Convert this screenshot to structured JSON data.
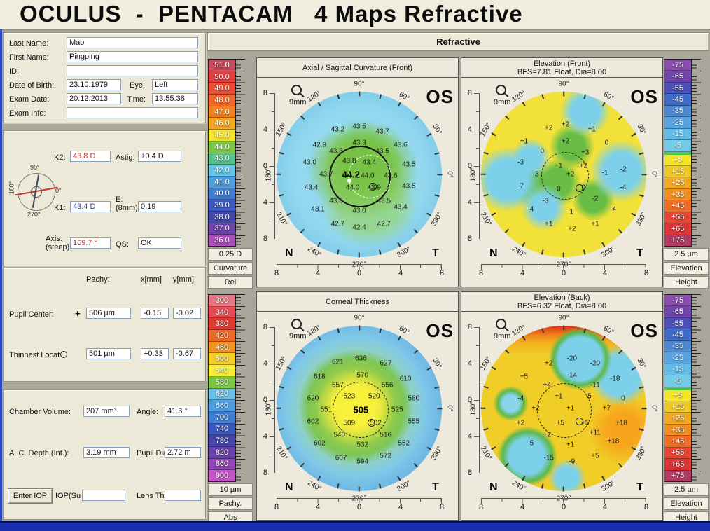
{
  "header": {
    "title": "OCULUS  -  PENTACAM   4 Maps Refractive"
  },
  "tab": {
    "refractive": "Refractive"
  },
  "patient": {
    "last_name_label": "Last Name:",
    "last_name": "Mao",
    "first_name_label": "First Name:",
    "first_name": "Pingping",
    "id_label": "ID:",
    "id": "",
    "dob_label": "Date of Birth:",
    "dob": "23.10.1979",
    "eye_label": "Eye:",
    "eye": "Left",
    "exam_date_label": "Exam Date:",
    "exam_date": "20.12.2013",
    "time_label": "Time:",
    "time": "13:55:38",
    "exam_info_label": "Exam Info:",
    "exam_info": ""
  },
  "kpanel": {
    "k2_label": "K2:",
    "k2": "43.8 D",
    "astig_label": "Astig:",
    "astig": "+0.4 D",
    "k1_label": "K1:",
    "k1": "43.4 D",
    "e_label_1": "E:",
    "e_label_2": "(8mm)",
    "e": "0.19",
    "axis_label_1": "Axis:",
    "axis_label_2": "(steep)",
    "axis": "169.7 °",
    "qs_label": "QS:",
    "qs": "OK",
    "dial": {
      "top": "90°",
      "left": "180°",
      "right": "0°",
      "bottom": "270°"
    }
  },
  "pachypanel": {
    "header_pachy": "Pachy:",
    "header_x": "x[mm]",
    "header_y": "y[mm]",
    "pupil_label": "Pupil Center:",
    "pupil_marker": "+",
    "pupil_pachy": "506 µm",
    "pupil_x": "-0.15",
    "pupil_y": "-0.02",
    "thinnest_label": "Thinnest Locat",
    "thinnest_pachy": "501 µm",
    "thinnest_x": "+0.33",
    "thinnest_y": "-0.67"
  },
  "bottompanel": {
    "chamber_label": "Chamber Volume:",
    "chamber": "207 mm³",
    "angle_label": "Angle:",
    "angle": "41.3 °",
    "acd_label": "A. C. Depth (Int.):",
    "acd": "3.19 mm",
    "pupil_dia_label": "Pupil Dia",
    "pupil_dia": "2.72 m",
    "enter_iop": "Enter IOP",
    "iop_label": "IOP(Su",
    "iop": "",
    "lens_label": "Lens Th.",
    "lens": ""
  },
  "scales": {
    "curvature": {
      "values": [
        "51.0",
        "50.0",
        "49.0",
        "48.0",
        "47.0",
        "46.0",
        "45.0",
        "44.0",
        "43.0",
        "42.0",
        "41.0",
        "40.0",
        "39.0",
        "38.0",
        "37.0",
        "36.0"
      ],
      "colors": [
        "#c74a5e",
        "#e23d3f",
        "#ed4a33",
        "#f1662a",
        "#f28323",
        "#f3a81f",
        "#f3e52b",
        "#7cc746",
        "#53c48e",
        "#67c5e7",
        "#4e9fe0",
        "#3f7cd5",
        "#3a5ac2",
        "#4446ab",
        "#7043ad",
        "#a94fb8"
      ],
      "step": "0.25 D",
      "quantity": "Curvature",
      "mode": "Rel"
    },
    "pachy": {
      "values": [
        "300",
        "340",
        "380",
        "420",
        "460",
        "500",
        "540",
        "580",
        "620",
        "660",
        "700",
        "740",
        "780",
        "820",
        "860",
        "900"
      ],
      "colors": [
        "#e57783",
        "#e84b55",
        "#df3a30",
        "#ef6a28",
        "#f29422",
        "#f4ce24",
        "#f5ee33",
        "#7cc843",
        "#69c0e8",
        "#4e9ede",
        "#3f7dd6",
        "#3a58c0",
        "#4345a8",
        "#6a42aa",
        "#9447b4",
        "#c355c4"
      ],
      "step": "10 µm",
      "quantity": "Pachy.",
      "mode": "Abs"
    },
    "elevation": {
      "values": [
        "-75",
        "-65",
        "-55",
        "-45",
        "-35",
        "-25",
        "-15",
        "-5",
        "+5",
        "+15",
        "+25",
        "+35",
        "+45",
        "+55",
        "+65",
        "+75"
      ],
      "colors": [
        "#8a4cae",
        "#6f46ac",
        "#4c50b8",
        "#3f6cc8",
        "#4a88d4",
        "#58a4e2",
        "#64bce8",
        "#74cce8",
        "#f4e42a",
        "#f2c922",
        "#f2ab20",
        "#f18f22",
        "#ef6d26",
        "#e84436",
        "#de3338",
        "#b13a62"
      ],
      "zero_after": 7,
      "zero_color": "#4fc44c",
      "step": "2.5 µm",
      "quantity": "Elevation",
      "mode": "Height"
    }
  },
  "maps": {
    "common": {
      "os": "OS",
      "zoom": "9mm",
      "n": "N",
      "t": "T",
      "axis_ticks": [
        "8",
        "4",
        "0",
        "4",
        "8"
      ],
      "angle_labels": [
        {
          "label": "90°",
          "deg": 90
        },
        {
          "label": "60°",
          "deg": 60
        },
        {
          "label": "30°",
          "deg": 30
        },
        {
          "label": "0°",
          "deg": 0
        },
        {
          "label": "330°",
          "deg": 330
        },
        {
          "label": "300°",
          "deg": 300
        },
        {
          "label": "270°",
          "deg": 270
        },
        {
          "label": "240°",
          "deg": 240
        },
        {
          "label": "210°",
          "deg": 210
        },
        {
          "label": "180°",
          "deg": 180
        },
        {
          "label": "150°",
          "deg": 150
        },
        {
          "label": "120°",
          "deg": 120
        }
      ]
    },
    "axial": {
      "title": "Axial / Sagittal Curvature (Front)",
      "subtitle": "",
      "values": [
        {
          "v": "43.2",
          "x": 37,
          "y": 23
        },
        {
          "v": "43.5",
          "x": 50,
          "y": 21
        },
        {
          "v": "43.7",
          "x": 64,
          "y": 24
        },
        {
          "v": "42.9",
          "x": 26,
          "y": 32
        },
        {
          "v": "43.3",
          "x": 50,
          "y": 31
        },
        {
          "v": "43.6",
          "x": 75,
          "y": 32
        },
        {
          "v": "43.3",
          "x": 36,
          "y": 36
        },
        {
          "v": "43.5",
          "x": 64,
          "y": 36
        },
        {
          "v": "43.0",
          "x": 20,
          "y": 43
        },
        {
          "v": "43.8",
          "x": 44,
          "y": 42
        },
        {
          "v": "43.4",
          "x": 56,
          "y": 43
        },
        {
          "v": "43.5",
          "x": 80,
          "y": 44
        },
        {
          "v": "43.7",
          "x": 30,
          "y": 50
        },
        {
          "v": "44.2",
          "x": 45,
          "y": 50,
          "b": 1
        },
        {
          "v": "44.0",
          "x": 55,
          "y": 51
        },
        {
          "v": "43.6",
          "x": 69,
          "y": 51
        },
        {
          "v": "43.4",
          "x": 21,
          "y": 58
        },
        {
          "v": "44.0",
          "x": 46,
          "y": 58
        },
        {
          "v": "43.9",
          "x": 59,
          "y": 58
        },
        {
          "v": "43.5",
          "x": 80,
          "y": 57
        },
        {
          "v": "43.3",
          "x": 36,
          "y": 66
        },
        {
          "v": "43.5",
          "x": 65,
          "y": 66
        },
        {
          "v": "43.1",
          "x": 25,
          "y": 71
        },
        {
          "v": "43.0",
          "x": 50,
          "y": 72
        },
        {
          "v": "43.4",
          "x": 75,
          "y": 70
        },
        {
          "v": "42.7",
          "x": 37,
          "y": 80
        },
        {
          "v": "42.4",
          "x": 50,
          "y": 82
        },
        {
          "v": "42.7",
          "x": 65,
          "y": 80
        }
      ]
    },
    "elev_front": {
      "title": "Elevation (Front)",
      "subtitle": "BFS=7.81 Float, Dia=8.00",
      "values": [
        {
          "v": "+2",
          "x": 41,
          "y": 22
        },
        {
          "v": "+2",
          "x": 51,
          "y": 20
        },
        {
          "v": "+1",
          "x": 67,
          "y": 23
        },
        {
          "v": "+1",
          "x": 26,
          "y": 30
        },
        {
          "v": "+2",
          "x": 51,
          "y": 30
        },
        {
          "v": "0",
          "x": 76,
          "y": 31
        },
        {
          "v": "0",
          "x": 37,
          "y": 36
        },
        {
          "v": "+3",
          "x": 63,
          "y": 37
        },
        {
          "v": "-3",
          "x": 24,
          "y": 43
        },
        {
          "v": "+1",
          "x": 47,
          "y": 45
        },
        {
          "v": "+2",
          "x": 62,
          "y": 45
        },
        {
          "v": "-2",
          "x": 86,
          "y": 47
        },
        {
          "v": "-3",
          "x": 33,
          "y": 50
        },
        {
          "v": "+2",
          "x": 54,
          "y": 50
        },
        {
          "v": "-1",
          "x": 75,
          "y": 49
        },
        {
          "v": "-7",
          "x": 24,
          "y": 57
        },
        {
          "v": "0",
          "x": 47,
          "y": 59
        },
        {
          "v": "0",
          "x": 62,
          "y": 58
        },
        {
          "v": "-4",
          "x": 86,
          "y": 58
        },
        {
          "v": "-3",
          "x": 39,
          "y": 66
        },
        {
          "v": "-2",
          "x": 69,
          "y": 65
        },
        {
          "v": "-4",
          "x": 30,
          "y": 71
        },
        {
          "v": "-1",
          "x": 54,
          "y": 73
        },
        {
          "v": "-4",
          "x": 80,
          "y": 71
        },
        {
          "v": "+1",
          "x": 41,
          "y": 80
        },
        {
          "v": "+2",
          "x": 55,
          "y": 83
        },
        {
          "v": "+1",
          "x": 69,
          "y": 80
        }
      ]
    },
    "thickness": {
      "title": "Corneal Thickness",
      "subtitle": "",
      "values": [
        {
          "v": "621",
          "x": 37,
          "y": 22
        },
        {
          "v": "636",
          "x": 51,
          "y": 20
        },
        {
          "v": "627",
          "x": 66,
          "y": 23
        },
        {
          "v": "618",
          "x": 26,
          "y": 31
        },
        {
          "v": "570",
          "x": 52,
          "y": 30
        },
        {
          "v": "610",
          "x": 78,
          "y": 32
        },
        {
          "v": "557",
          "x": 37,
          "y": 36
        },
        {
          "v": "556",
          "x": 67,
          "y": 36
        },
        {
          "v": "620",
          "x": 22,
          "y": 44
        },
        {
          "v": "523",
          "x": 44,
          "y": 43
        },
        {
          "v": "520",
          "x": 59,
          "y": 43
        },
        {
          "v": "580",
          "x": 83,
          "y": 44
        },
        {
          "v": "551",
          "x": 30,
          "y": 51
        },
        {
          "v": "505",
          "x": 51,
          "y": 51,
          "b": 1
        },
        {
          "v": "525",
          "x": 73,
          "y": 51
        },
        {
          "v": "602",
          "x": 22,
          "y": 58
        },
        {
          "v": "509",
          "x": 44,
          "y": 59
        },
        {
          "v": "502",
          "x": 60,
          "y": 59
        },
        {
          "v": "555",
          "x": 83,
          "y": 58
        },
        {
          "v": "540",
          "x": 38,
          "y": 66
        },
        {
          "v": "516",
          "x": 66,
          "y": 66
        },
        {
          "v": "602",
          "x": 26,
          "y": 71
        },
        {
          "v": "532",
          "x": 52,
          "y": 72
        },
        {
          "v": "552",
          "x": 77,
          "y": 71
        },
        {
          "v": "607",
          "x": 39,
          "y": 80
        },
        {
          "v": "594",
          "x": 52,
          "y": 82
        },
        {
          "v": "572",
          "x": 66,
          "y": 79
        }
      ]
    },
    "elev_back": {
      "title": "Elevation (Back)",
      "subtitle": "BFS=6.32 Float, Dia=8.00",
      "values": [
        {
          "v": "+2",
          "x": 41,
          "y": 23
        },
        {
          "v": "-20",
          "x": 55,
          "y": 20
        },
        {
          "v": "-20",
          "x": 69,
          "y": 23
        },
        {
          "v": "+5",
          "x": 26,
          "y": 31
        },
        {
          "v": "-14",
          "x": 55,
          "y": 30
        },
        {
          "v": "-18",
          "x": 81,
          "y": 32
        },
        {
          "v": "+4",
          "x": 40,
          "y": 36
        },
        {
          "v": "-11",
          "x": 69,
          "y": 36
        },
        {
          "v": "-4",
          "x": 24,
          "y": 44
        },
        {
          "v": "+1",
          "x": 47,
          "y": 43
        },
        {
          "v": "-5",
          "x": 65,
          "y": 43
        },
        {
          "v": "0",
          "x": 86,
          "y": 44
        },
        {
          "v": "+2",
          "x": 33,
          "y": 50
        },
        {
          "v": "+1",
          "x": 54,
          "y": 50
        },
        {
          "v": "+7",
          "x": 76,
          "y": 50
        },
        {
          "v": "+2",
          "x": 24,
          "y": 59
        },
        {
          "v": "+5",
          "x": 48,
          "y": 59
        },
        {
          "v": "+5",
          "x": 63,
          "y": 59
        },
        {
          "v": "+18",
          "x": 85,
          "y": 59
        },
        {
          "v": "+2",
          "x": 40,
          "y": 66
        },
        {
          "v": "+11",
          "x": 69,
          "y": 65
        },
        {
          "v": "-5",
          "x": 30,
          "y": 71
        },
        {
          "v": "+1",
          "x": 54,
          "y": 72
        },
        {
          "v": "+18",
          "x": 80,
          "y": 70
        },
        {
          "v": "-15",
          "x": 41,
          "y": 80
        },
        {
          "v": "-9",
          "x": 55,
          "y": 82
        },
        {
          "v": "+5",
          "x": 69,
          "y": 79
        }
      ]
    }
  }
}
